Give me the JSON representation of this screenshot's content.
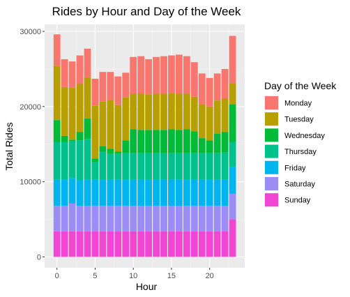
{
  "chart_data": {
    "type": "bar",
    "stacked": true,
    "title": "Rides by Hour and Day of the Week",
    "xlabel": "Hour",
    "ylabel": "Total Rides",
    "x": [
      0,
      1,
      2,
      3,
      4,
      5,
      6,
      7,
      8,
      9,
      10,
      11,
      12,
      13,
      14,
      15,
      16,
      17,
      18,
      19,
      20,
      21,
      22,
      23
    ],
    "xticks": [
      0,
      5,
      10,
      15,
      20
    ],
    "xtick_labels": [
      "0",
      "5",
      "10",
      "15",
      "20"
    ],
    "ylim": [
      0,
      31500
    ],
    "yticks": [
      0,
      10000,
      20000,
      30000
    ],
    "ytick_labels": [
      "0",
      "10000",
      "20000",
      "30000"
    ],
    "grid": true,
    "legend": {
      "title": "Day of the Week",
      "position": "right"
    },
    "stack_order": [
      "Sunday",
      "Saturday",
      "Friday",
      "Thursday",
      "Wednesday",
      "Tuesday",
      "Monday"
    ],
    "series": [
      {
        "name": "Monday",
        "color": "#F8766D",
        "values": [
          4200,
          3700,
          3500,
          3800,
          3800,
          3600,
          3900,
          3700,
          3800,
          3300,
          4900,
          5000,
          4700,
          4900,
          5000,
          5000,
          5200,
          5000,
          4600,
          4100,
          3800,
          3600,
          3900,
          6300
        ]
      },
      {
        "name": "Tuesday",
        "color": "#B79F00",
        "values": [
          7200,
          6500,
          6900,
          6400,
          5500,
          7000,
          6000,
          6500,
          6200,
          5700,
          4700,
          4800,
          4700,
          4800,
          4800,
          4800,
          4800,
          4700,
          4600,
          4500,
          4500,
          4400,
          4500,
          2800
        ]
      },
      {
        "name": "Wednesday",
        "color": "#00BA38",
        "values": [
          2900,
          800,
          200,
          1100,
          2700,
          500,
          700,
          700,
          300,
          1700,
          3200,
          3100,
          3100,
          3100,
          3100,
          3200,
          3100,
          3200,
          2900,
          2000,
          1700,
          2600,
          2700,
          5000
        ]
      },
      {
        "name": "Thursday",
        "color": "#00C08B",
        "values": [
          5000,
          5000,
          4900,
          5300,
          5400,
          2300,
          3700,
          3400,
          3400,
          3500,
          3500,
          3500,
          3500,
          3500,
          3500,
          3500,
          3500,
          3500,
          3500,
          3500,
          3500,
          3500,
          3600,
          3300
        ]
      },
      {
        "name": "Friday",
        "color": "#00B4F0",
        "values": [
          3500,
          3500,
          3400,
          3400,
          3500,
          3500,
          3500,
          3500,
          3500,
          3500,
          3500,
          3500,
          3500,
          3500,
          3500,
          3500,
          3500,
          3500,
          3500,
          3500,
          3500,
          3500,
          3500,
          3600
        ]
      },
      {
        "name": "Saturday",
        "color": "#9B8DF5",
        "values": [
          3400,
          3400,
          3700,
          3400,
          3400,
          3400,
          3400,
          3400,
          3400,
          3400,
          3400,
          3400,
          3400,
          3400,
          3400,
          3400,
          3400,
          3400,
          3400,
          3400,
          3400,
          3400,
          3400,
          3400
        ]
      },
      {
        "name": "Sunday",
        "color": "#F145D3",
        "values": [
          3400,
          3400,
          3400,
          3400,
          3400,
          3400,
          3400,
          3400,
          3400,
          3400,
          3400,
          3400,
          3400,
          3400,
          3400,
          3400,
          3400,
          3400,
          3400,
          3400,
          3400,
          3400,
          3400,
          5000
        ]
      }
    ]
  }
}
